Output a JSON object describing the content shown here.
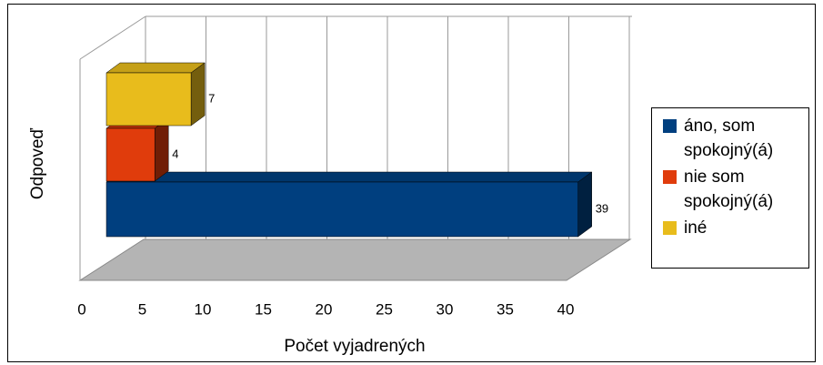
{
  "chart_data": {
    "type": "bar",
    "orientation": "horizontal",
    "three_d": true,
    "xlabel": "Počet vyjadrených",
    "ylabel": "Odpoveď",
    "categories": [
      null
    ],
    "series": [
      {
        "name": "áno, som spokojný(á)",
        "color": "#003f7f",
        "values": [
          39
        ]
      },
      {
        "name": "nie som spokojný(á)",
        "color": "#e03c0c",
        "values": [
          4
        ]
      },
      {
        "name": "iné",
        "color": "#e8bc1c",
        "values": [
          7
        ]
      }
    ],
    "xlim": [
      0,
      40
    ],
    "xticks": [
      0,
      5,
      10,
      15,
      20,
      25,
      30,
      35,
      40
    ],
    "grid": true,
    "legend": "right"
  }
}
